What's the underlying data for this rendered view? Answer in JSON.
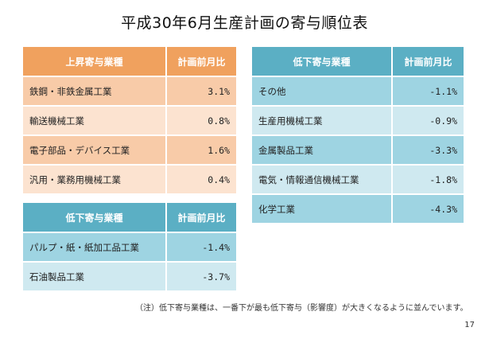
{
  "title": "平成30年6月生産計画の寄与順位表",
  "table_up": {
    "header_category": "上昇寄与業種",
    "header_value": "計画前月比",
    "rows": [
      {
        "name": "鉄鋼・非鉄金属工業",
        "value": "3.1%"
      },
      {
        "name": "輸送機械工業",
        "value": "0.8%"
      },
      {
        "name": "電子部品・デバイス工業",
        "value": "1.6%"
      },
      {
        "name": "汎用・業務用機械工業",
        "value": "0.4%"
      }
    ]
  },
  "table_down_left": {
    "header_category": "低下寄与業種",
    "header_value": "計画前月比",
    "rows": [
      {
        "name": "パルプ・紙・紙加工品工業",
        "value": "-1.4%"
      },
      {
        "name": "石油製品工業",
        "value": "-3.7%"
      }
    ]
  },
  "table_down_right": {
    "header_category": "低下寄与業種",
    "header_value": "計画前月比",
    "rows": [
      {
        "name": "その他",
        "value": "-1.1%"
      },
      {
        "name": "生産用機械工業",
        "value": "-0.9%"
      },
      {
        "name": "金属製品工業",
        "value": "-3.3%"
      },
      {
        "name": "電気・情報通信機械工業",
        "value": "-1.8%"
      },
      {
        "name": "化学工業",
        "value": "-4.3%"
      }
    ]
  },
  "note": "（注）低下寄与業種は、一番下が最も低下寄与（影響度）が大きくなるように並んでいます。",
  "page_number": "17"
}
